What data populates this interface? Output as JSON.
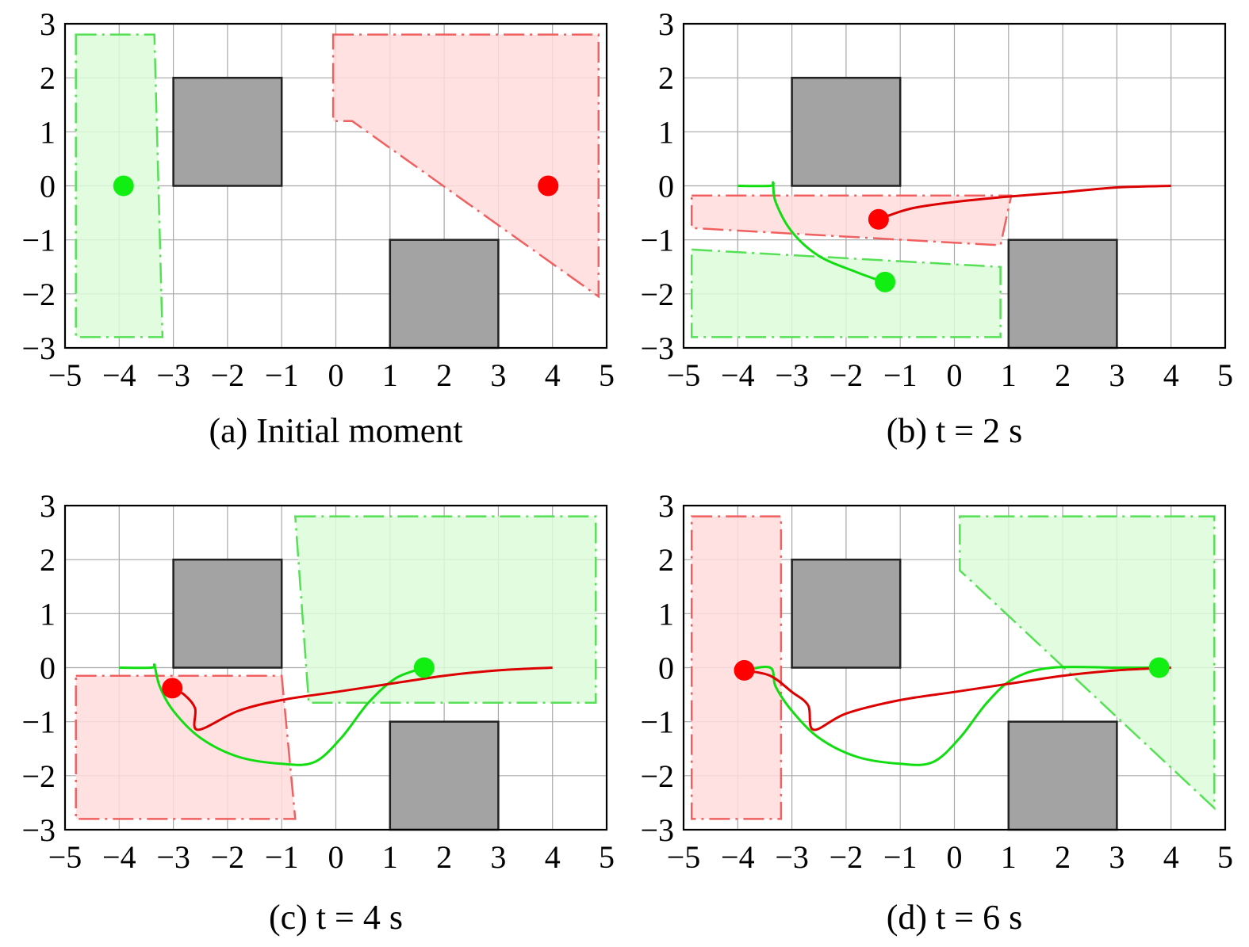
{
  "chart_data": [
    {
      "type": "line",
      "caption": "(a) Initial moment",
      "xlim": [
        -5,
        5
      ],
      "ylim": [
        -3,
        3
      ],
      "xticks": [
        "−5",
        "−4",
        "−3",
        "−2",
        "−1",
        "0",
        "1",
        "2",
        "3",
        "4",
        "5"
      ],
      "yticks": [
        "3",
        "2",
        "1",
        "0",
        "−1",
        "−2",
        "−3"
      ],
      "grid": true,
      "obstacles": [
        {
          "x0": -3,
          "y0": 0,
          "x1": -1,
          "y1": 2
        },
        {
          "x0": 1,
          "y0": -3,
          "x1": 3,
          "y1": -1
        }
      ],
      "red_region": [
        [
          -0.05,
          2.8
        ],
        [
          4.85,
          2.8
        ],
        [
          4.85,
          -2.05
        ],
        [
          0.3,
          1.2
        ],
        [
          -0.05,
          1.2
        ]
      ],
      "green_region": [
        [
          -4.8,
          2.8
        ],
        [
          -3.35,
          2.8
        ],
        [
          -3.2,
          -2.8
        ],
        [
          -4.8,
          -2.8
        ]
      ],
      "red_trajectory": [],
      "green_trajectory": [],
      "red_point": [
        3.92,
        0
      ],
      "green_point": [
        -3.92,
        0
      ]
    },
    {
      "type": "line",
      "caption": "(b) t = 2 s",
      "xlim": [
        -5,
        5
      ],
      "ylim": [
        -3,
        3
      ],
      "xticks": [
        "−5",
        "−4",
        "−3",
        "−2",
        "−1",
        "0",
        "1",
        "2",
        "3",
        "4",
        "5"
      ],
      "yticks": [
        "3",
        "2",
        "1",
        "0",
        "−1",
        "−2",
        "−3"
      ],
      "grid": true,
      "obstacles": [
        {
          "x0": -3,
          "y0": 0,
          "x1": -1,
          "y1": 2
        },
        {
          "x0": 1,
          "y0": -3,
          "x1": 3,
          "y1": -1
        }
      ],
      "red_region": [
        [
          -4.85,
          -0.18
        ],
        [
          1.05,
          -0.18
        ],
        [
          0.85,
          -1.1
        ],
        [
          -4.85,
          -0.78
        ]
      ],
      "green_region": [
        [
          -4.85,
          -1.18
        ],
        [
          0.85,
          -1.5
        ],
        [
          0.85,
          -2.8
        ],
        [
          -4.85,
          -2.8
        ]
      ],
      "red_trajectory": [
        [
          4.0,
          0.0
        ],
        [
          3.0,
          -0.03
        ],
        [
          2.0,
          -0.12
        ],
        [
          1.0,
          -0.2
        ],
        [
          0.0,
          -0.3
        ],
        [
          -0.8,
          -0.42
        ],
        [
          -1.4,
          -0.62
        ]
      ],
      "green_trajectory": [
        [
          -4.0,
          0.0
        ],
        [
          -3.4,
          0.0
        ],
        [
          -3.35,
          0.05
        ],
        [
          -3.3,
          -0.3
        ],
        [
          -3.0,
          -0.85
        ],
        [
          -2.5,
          -1.3
        ],
        [
          -1.8,
          -1.6
        ],
        [
          -1.3,
          -1.78
        ]
      ],
      "red_point": [
        -1.4,
        -0.62
      ],
      "green_point": [
        -1.28,
        -1.78
      ]
    },
    {
      "type": "line",
      "caption": "(c) t = 4 s",
      "xlim": [
        -5,
        5
      ],
      "ylim": [
        -3,
        3
      ],
      "xticks": [
        "−5",
        "−4",
        "−3",
        "−2",
        "−1",
        "0",
        "1",
        "2",
        "3",
        "4",
        "5"
      ],
      "yticks": [
        "3",
        "2",
        "1",
        "0",
        "−1",
        "−2",
        "−3"
      ],
      "grid": true,
      "obstacles": [
        {
          "x0": -3,
          "y0": 0,
          "x1": -1,
          "y1": 2
        },
        {
          "x0": 1,
          "y0": -3,
          "x1": 3,
          "y1": -1
        }
      ],
      "red_region": [
        [
          -4.8,
          -0.15
        ],
        [
          -1.0,
          -0.15
        ],
        [
          -0.75,
          -2.8
        ],
        [
          -4.8,
          -2.8
        ]
      ],
      "green_region": [
        [
          -0.75,
          2.8
        ],
        [
          4.8,
          2.8
        ],
        [
          4.8,
          -0.65
        ],
        [
          -0.5,
          -0.65
        ]
      ],
      "red_trajectory": [
        [
          4.0,
          0.0
        ],
        [
          3.0,
          -0.05
        ],
        [
          2.0,
          -0.15
        ],
        [
          1.0,
          -0.3
        ],
        [
          0.0,
          -0.45
        ],
        [
          -1.0,
          -0.6
        ],
        [
          -1.8,
          -0.8
        ],
        [
          -2.55,
          -1.15
        ],
        [
          -2.6,
          -0.75
        ],
        [
          -2.8,
          -0.5
        ],
        [
          -3.02,
          -0.38
        ]
      ],
      "green_trajectory": [
        [
          -4.0,
          0.0
        ],
        [
          -3.4,
          0.0
        ],
        [
          -3.35,
          0.04
        ],
        [
          -3.25,
          -0.35
        ],
        [
          -3.0,
          -0.8
        ],
        [
          -2.5,
          -1.3
        ],
        [
          -1.8,
          -1.65
        ],
        [
          -1.0,
          -1.78
        ],
        [
          -0.4,
          -1.75
        ],
        [
          0.1,
          -1.3
        ],
        [
          0.6,
          -0.65
        ],
        [
          1.1,
          -0.2
        ],
        [
          1.63,
          0.0
        ]
      ],
      "red_point": [
        -3.02,
        -0.38
      ],
      "green_point": [
        1.63,
        0.0
      ]
    },
    {
      "type": "line",
      "caption": "(d) t = 6 s",
      "xlim": [
        -5,
        5
      ],
      "ylim": [
        -3,
        3
      ],
      "xticks": [
        "−5",
        "−4",
        "−3",
        "−2",
        "−1",
        "0",
        "1",
        "2",
        "3",
        "4",
        "5"
      ],
      "yticks": [
        "3",
        "2",
        "1",
        "0",
        "−1",
        "−2",
        "−3"
      ],
      "grid": true,
      "obstacles": [
        {
          "x0": -3,
          "y0": 0,
          "x1": -1,
          "y1": 2
        },
        {
          "x0": 1,
          "y0": -3,
          "x1": 3,
          "y1": -1
        }
      ],
      "red_region": [
        [
          -4.85,
          2.8
        ],
        [
          -3.2,
          2.8
        ],
        [
          -3.2,
          -2.8
        ],
        [
          -4.85,
          -2.8
        ]
      ],
      "green_region": [
        [
          0.1,
          2.8
        ],
        [
          4.8,
          2.8
        ],
        [
          4.8,
          -2.6
        ],
        [
          0.1,
          1.8
        ]
      ],
      "red_trajectory": [
        [
          4.0,
          0.0
        ],
        [
          3.0,
          -0.05
        ],
        [
          2.0,
          -0.15
        ],
        [
          1.0,
          -0.3
        ],
        [
          0.0,
          -0.45
        ],
        [
          -1.0,
          -0.6
        ],
        [
          -2.0,
          -0.85
        ],
        [
          -2.6,
          -1.15
        ],
        [
          -2.7,
          -0.7
        ],
        [
          -3.0,
          -0.45
        ],
        [
          -3.4,
          -0.15
        ],
        [
          -3.88,
          -0.05
        ]
      ],
      "green_trajectory": [
        [
          -3.88,
          -0.05
        ],
        [
          -3.4,
          0.0
        ],
        [
          -3.3,
          -0.35
        ],
        [
          -3.0,
          -0.8
        ],
        [
          -2.5,
          -1.3
        ],
        [
          -1.8,
          -1.65
        ],
        [
          -1.0,
          -1.78
        ],
        [
          -0.4,
          -1.75
        ],
        [
          0.1,
          -1.3
        ],
        [
          0.6,
          -0.65
        ],
        [
          1.1,
          -0.2
        ],
        [
          1.8,
          0.0
        ],
        [
          3.0,
          0.0
        ],
        [
          3.78,
          0.0
        ]
      ],
      "red_point": [
        -3.88,
        -0.05
      ],
      "green_point": [
        3.78,
        0.0
      ]
    }
  ]
}
